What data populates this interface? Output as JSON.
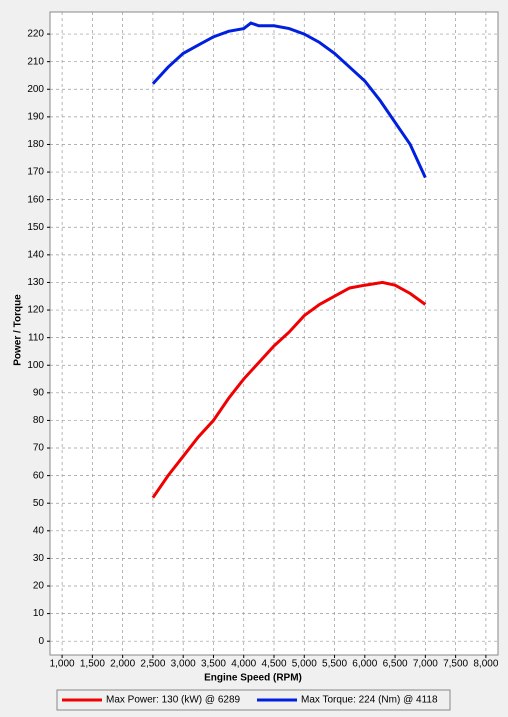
{
  "chart_data": {
    "type": "line",
    "x_label": "Engine Speed (RPM)",
    "y_label": "Power / Torque",
    "y_label_color": "#e00000",
    "series": [
      {
        "name": "Max Power: 130 (kW) @ 6289",
        "color": "#f00000",
        "x": [
          2500,
          2750,
          3000,
          3250,
          3500,
          3750,
          4000,
          4250,
          4500,
          4750,
          5000,
          5250,
          5500,
          5750,
          6000,
          6289,
          6500,
          6750,
          7000
        ],
        "values": [
          52,
          60,
          67,
          74,
          80,
          88,
          95,
          101,
          107,
          112,
          118,
          122,
          125,
          128,
          129,
          130,
          129,
          126,
          122
        ]
      },
      {
        "name": "Max Torque: 224 (Nm) @ 4118",
        "color": "#0020e0",
        "x": [
          2500,
          2750,
          3000,
          3250,
          3500,
          3750,
          4000,
          4118,
          4250,
          4500,
          4750,
          5000,
          5250,
          5500,
          5750,
          6000,
          6250,
          6500,
          6750,
          7000
        ],
        "values": [
          202,
          208,
          213,
          216,
          219,
          221,
          222,
          224,
          223,
          223,
          222,
          220,
          217,
          213,
          208,
          203,
          196,
          188,
          180,
          168
        ]
      }
    ],
    "xlim": [
      800,
      8200
    ],
    "xticks": [
      {
        "value": 1000,
        "label": "1,000"
      },
      {
        "value": 1500,
        "label": "1,500"
      },
      {
        "value": 2000,
        "label": "2,000"
      },
      {
        "value": 2500,
        "label": "2,500"
      },
      {
        "value": 3000,
        "label": "3,000"
      },
      {
        "value": 3500,
        "label": "3,500"
      },
      {
        "value": 4000,
        "label": "4,000"
      },
      {
        "value": 4500,
        "label": "4,500"
      },
      {
        "value": 5000,
        "label": "5,000"
      },
      {
        "value": 5500,
        "label": "5,500"
      },
      {
        "value": 6000,
        "label": "6,000"
      },
      {
        "value": 6500,
        "label": "6,500"
      },
      {
        "value": 7000,
        "label": "7,000"
      },
      {
        "value": 7500,
        "label": "7,500"
      },
      {
        "value": 8000,
        "label": "8,000"
      }
    ],
    "ylim": [
      -5,
      228
    ],
    "yticks": [
      0,
      10,
      20,
      30,
      40,
      50,
      60,
      70,
      80,
      90,
      100,
      110,
      120,
      130,
      140,
      150,
      160,
      170,
      180,
      190,
      200,
      210,
      220
    ],
    "grid": true
  }
}
